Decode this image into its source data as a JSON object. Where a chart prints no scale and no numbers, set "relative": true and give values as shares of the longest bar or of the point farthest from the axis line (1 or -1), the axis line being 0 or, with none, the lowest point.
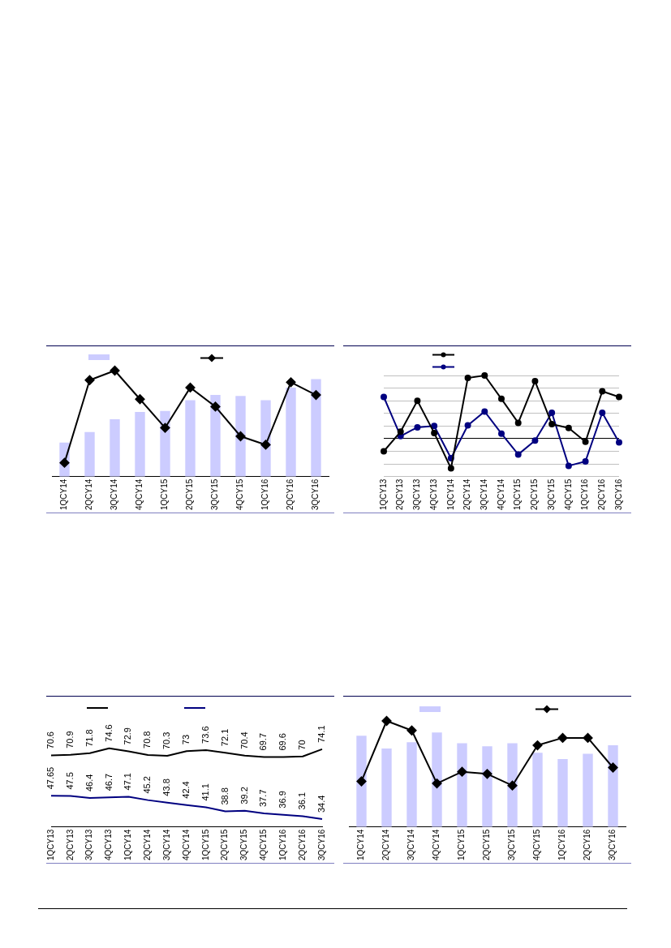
{
  "chart_data": [
    {
      "type": "bar",
      "relative": true,
      "categories": [
        "1QCY14",
        "2QCY14",
        "3QCY14",
        "4QCY14",
        "1QCY15",
        "2QCY15",
        "3QCY15",
        "4QCY15",
        "1QCY16",
        "2QCY16",
        "3QCY16"
      ],
      "series": [
        {
          "type": "bar",
          "color": "#ccccff",
          "values": [
            0.32,
            0.42,
            0.54,
            0.61,
            0.62,
            0.72,
            0.77,
            0.76,
            0.72,
            0.84,
            0.92
          ]
        },
        {
          "type": "line",
          "color": "#000000",
          "marker": "diamond",
          "values": [
            0.13,
            0.91,
            1,
            0.73,
            0.46,
            0.84,
            0.66,
            0.38,
            0.3,
            0.89,
            0.77
          ]
        }
      ]
    },
    {
      "type": "line",
      "relative": true,
      "grid": "y",
      "marker": "circle",
      "categories": [
        "1QCY13",
        "2QCY13",
        "3QCY13",
        "4QCY13",
        "1QCY14",
        "2QCY14",
        "3QCY14",
        "4QCY14",
        "1QCY15",
        "2QCY15",
        "3QCY15",
        "4QCY15",
        "1QCY16",
        "2QCY16",
        "3QCY16"
      ],
      "series": [
        {
          "color": "#000000",
          "values": [
            -0.2,
            0.11,
            0.6,
            0.09,
            -0.47,
            0.96,
            1,
            0.63,
            0.25,
            0.91,
            0.23,
            0.17,
            -0.05,
            0.75,
            0.66
          ]
        },
        {
          "color": "#000080",
          "values": [
            0.66,
            0.04,
            0.18,
            0.2,
            -0.31,
            0.21,
            0.43,
            0.08,
            -0.25,
            -0.03,
            0.41,
            -0.43,
            -0.36,
            0.41,
            -0.06
          ]
        }
      ]
    },
    {
      "type": "line",
      "data_labels": true,
      "marker": "none",
      "categories": [
        "1QCY13",
        "2QCY13",
        "3QCY13",
        "4QCY13",
        "1QCY14",
        "2QCY14",
        "3QCY14",
        "4QCY14",
        "1QCY15",
        "2QCY15",
        "3QCY15",
        "4QCY15",
        "1QCY16",
        "2QCY16",
        "3QCY16"
      ],
      "series": [
        {
          "color": "#000000",
          "values": [
            70.6,
            70.9,
            71.8,
            74.6,
            72.9,
            70.8,
            70.3,
            73,
            73.6,
            72.1,
            70.4,
            69.7,
            69.6,
            70,
            74.1
          ]
        },
        {
          "color": "#000080",
          "values": [
            47.65,
            47.5,
            46.4,
            46.7,
            47.1,
            45.2,
            43.8,
            42.4,
            41.1,
            38.8,
            39.2,
            37.7,
            36.9,
            36.1,
            34.4
          ]
        }
      ]
    },
    {
      "type": "bar",
      "relative": true,
      "categories": [
        "1QCY14",
        "2QCY14",
        "3QCY14",
        "4QCY14",
        "1QCY15",
        "2QCY15",
        "3QCY15",
        "4QCY15",
        "1QCY16",
        "2QCY16",
        "3QCY16"
      ],
      "series": [
        {
          "type": "bar",
          "color": "#ccccff",
          "values": [
            0.86,
            0.74,
            0.8,
            0.89,
            0.79,
            0.76,
            0.79,
            0.7,
            0.64,
            0.69,
            0.77
          ]
        },
        {
          "type": "line",
          "color": "#000000",
          "marker": "diamond",
          "values": [
            0.43,
            1,
            0.91,
            0.41,
            0.52,
            0.5,
            0.39,
            0.77,
            0.84,
            0.84,
            0.56
          ]
        }
      ]
    }
  ]
}
